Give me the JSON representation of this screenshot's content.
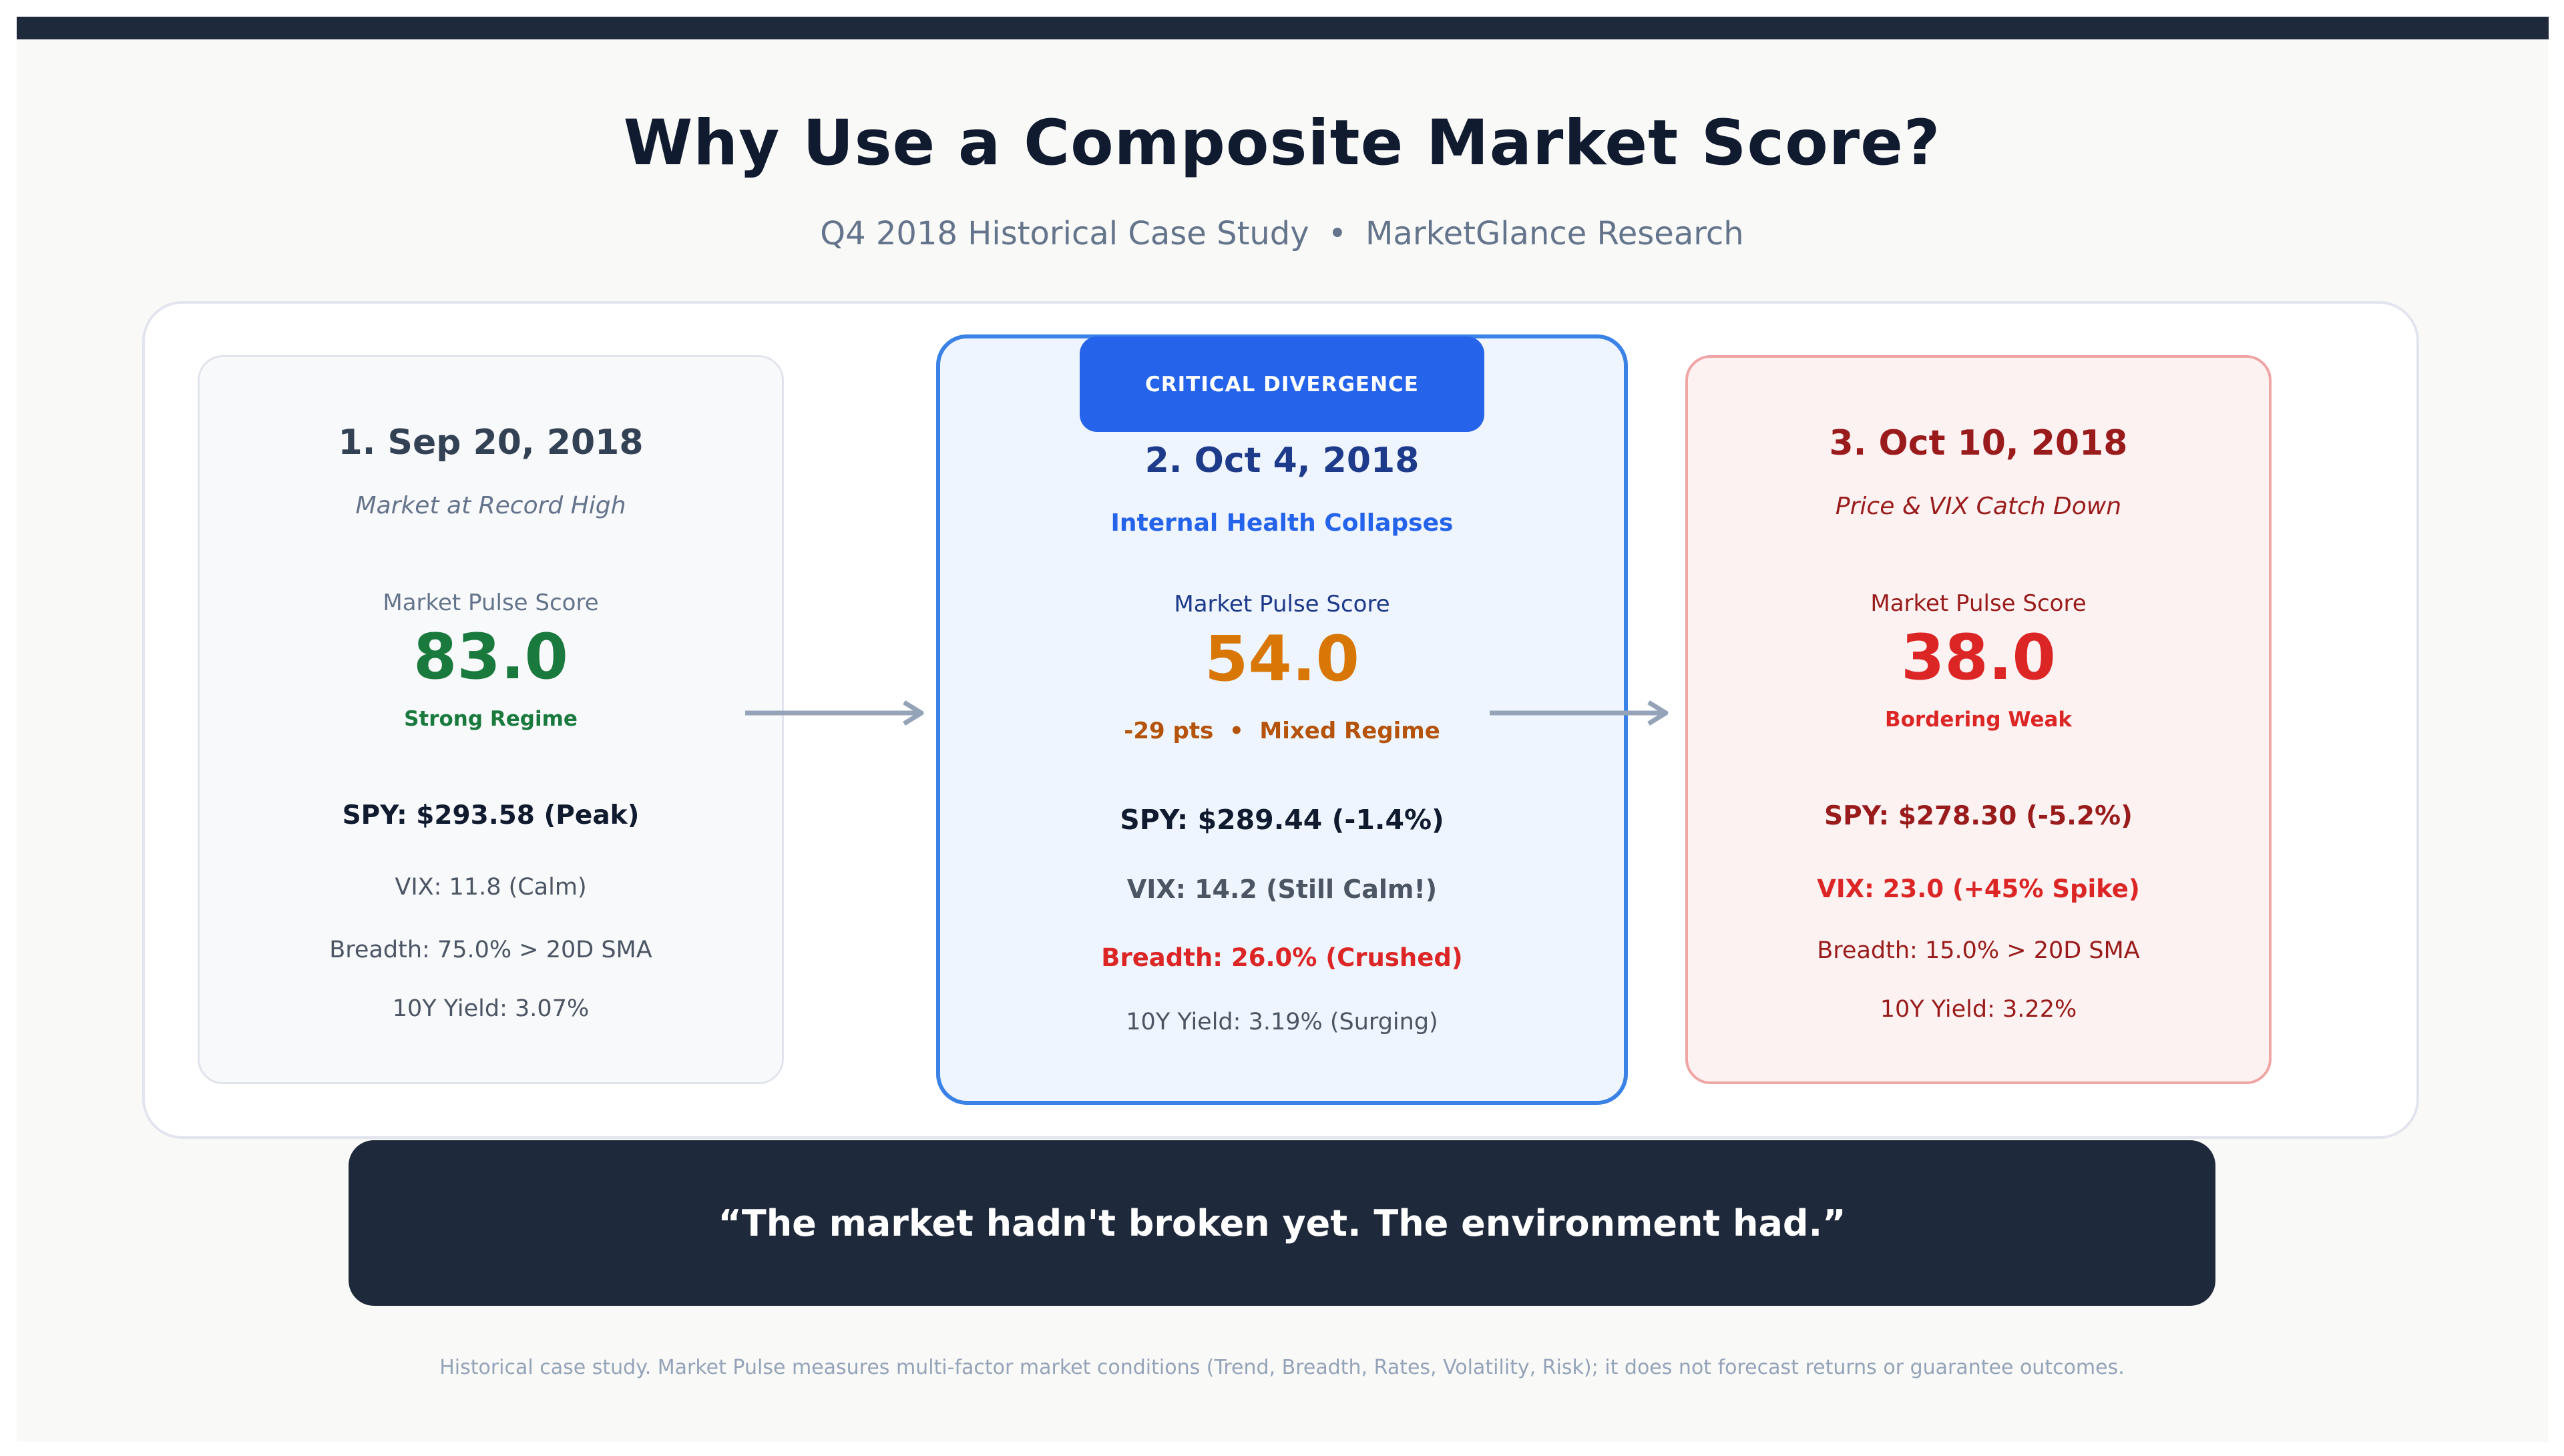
{
  "header": {
    "title": "Why Use a Composite Market Score?",
    "subtitle_left": "Q4 2018 Historical Case Study",
    "subtitle_sep": "•",
    "subtitle_right": "MarketGlance Research"
  },
  "colors": {
    "dark": "#1e293b",
    "accent_blue": "#2563eb",
    "strong_green": "#1a7a3e",
    "mixed_orange": "#d97706",
    "weak_red": "#dc2626",
    "arrow_gray": "#94a3b8"
  },
  "cards": [
    {
      "date": "1. Sep 20, 2018",
      "caption": "Market at Record High",
      "score_label": "Market Pulse Score",
      "score": "83.0",
      "regime": "Strong Regime",
      "spy": "SPY: $293.58 (Peak)",
      "vix": "VIX: 11.8 (Calm)",
      "breadth": "Breadth: 75.0% > 20D SMA",
      "yield": "10Y Yield: 3.07%"
    },
    {
      "badge": "CRITICAL DIVERGENCE",
      "date": "2. Oct 4, 2018",
      "caption": "Internal Health Collapses",
      "score_label": "Market Pulse Score",
      "score": "54.0",
      "regime": "-29 pts  •  Mixed Regime",
      "spy": "SPY: $289.44 (-1.4%)",
      "vix": "VIX: 14.2 (Still Calm!)",
      "breadth": "Breadth: 26.0% (Crushed)",
      "yield": "10Y Yield: 3.19% (Surging)"
    },
    {
      "date": "3. Oct 10, 2018",
      "caption": "Price & VIX Catch Down",
      "score_label": "Market Pulse Score",
      "score": "38.0",
      "regime": "Bordering Weak",
      "spy": "SPY: $278.30 (-5.2%)",
      "vix": "VIX: 23.0 (+45% Spike)",
      "breadth": "Breadth: 15.0% > 20D SMA",
      "yield": "10Y Yield: 3.22%"
    }
  ],
  "quote": "“The market hadn't broken yet. The environment had.”",
  "footnote": "Historical case study. Market Pulse measures multi-factor market conditions (Trend, Breadth, Rates, Volatility, Risk); it does not forecast returns or guarantee outcomes."
}
